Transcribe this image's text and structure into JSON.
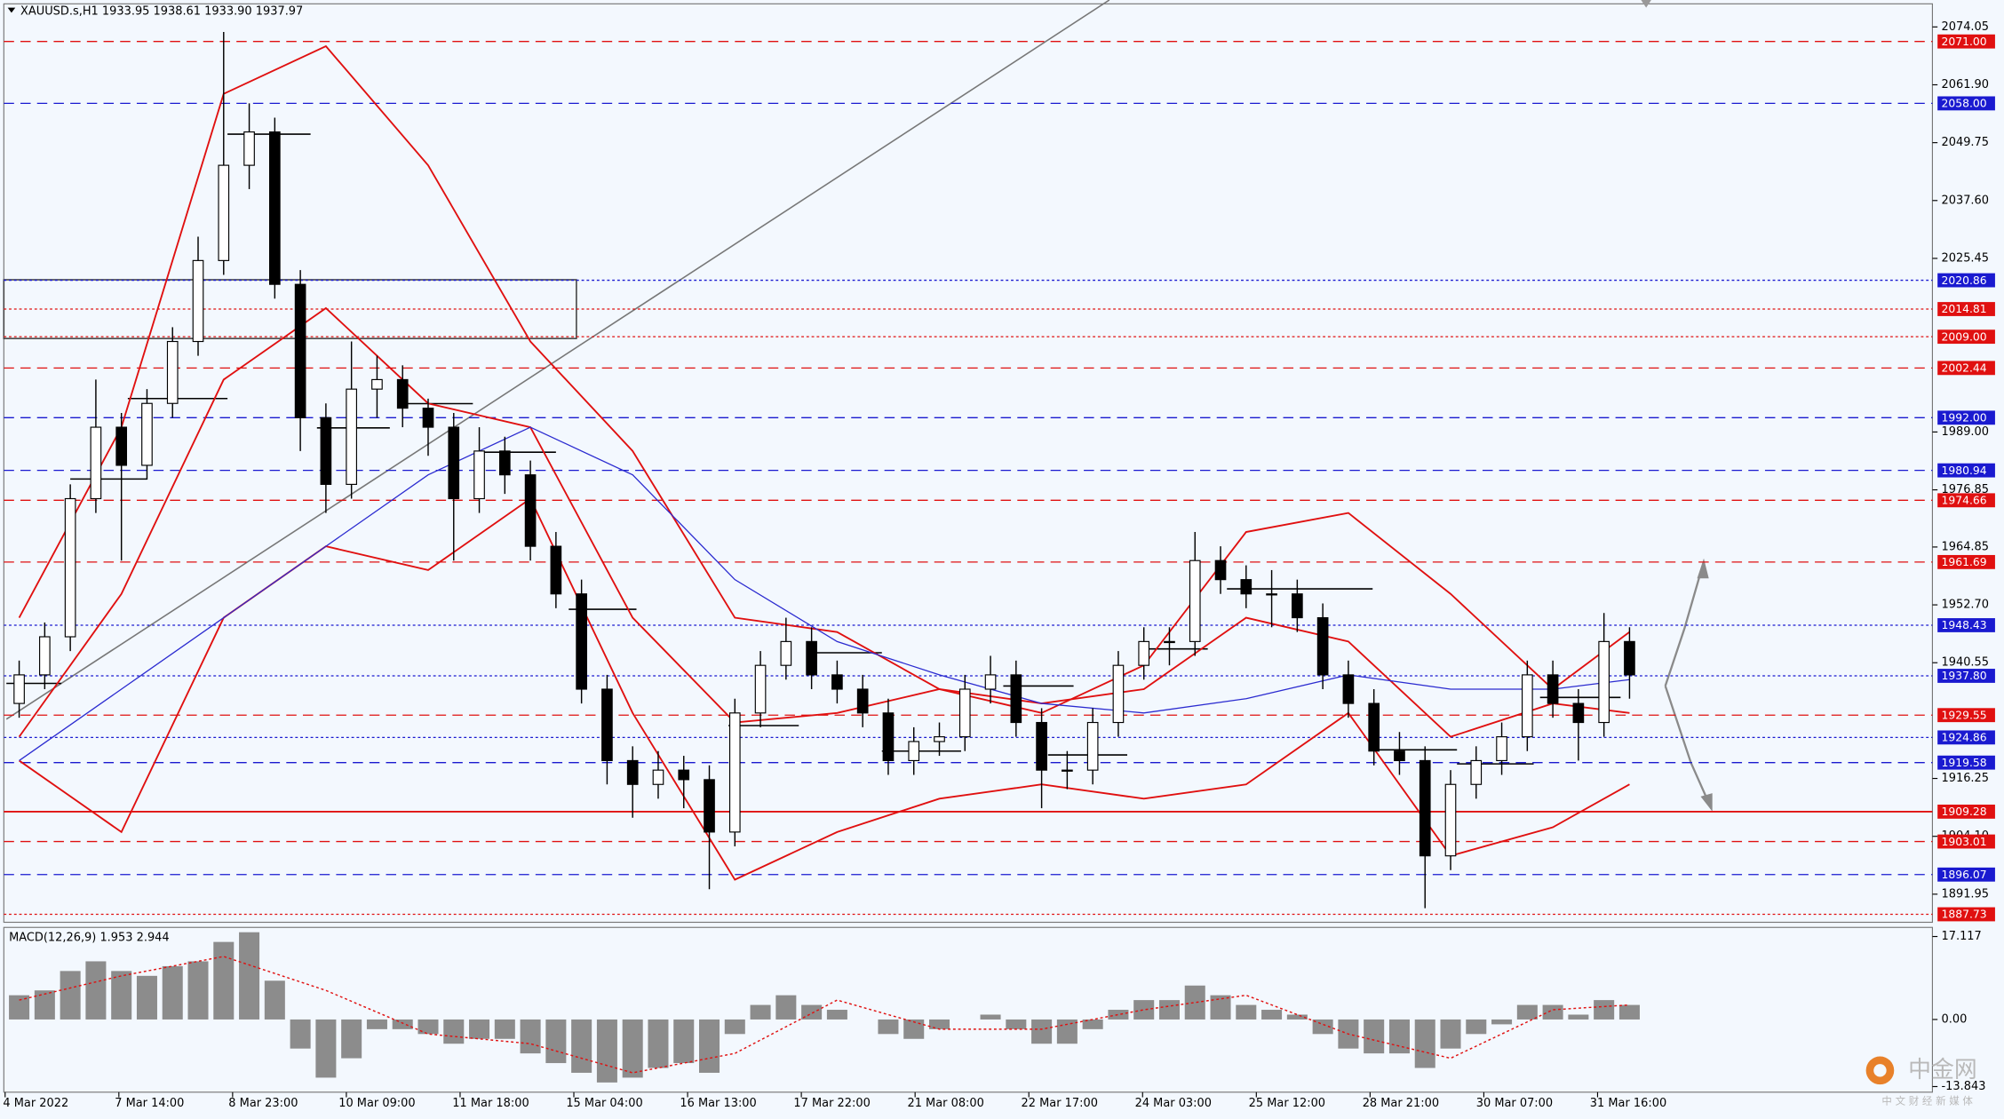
{
  "chart_data": {
    "type": "candlestick",
    "title": "XAUUSD.s,H1  1933.95 1938.61 1933.90 1937.97",
    "macd_title": "MACD(12,26,9) 1.953 2.944",
    "watermark": "中金网",
    "watermark_sub": "中 文 财 经 新 媒 体",
    "categories": [
      "4 Mar 2022",
      "7 Mar 14:00",
      "8 Mar 23:00",
      "10 Mar 09:00",
      "11 Mar 18:00",
      "15 Mar 04:00",
      "16 Mar 13:00",
      "17 Mar 22:00",
      "21 Mar 08:00",
      "22 Mar 17:00",
      "24 Mar 03:00",
      "25 Mar 12:00",
      "28 Mar 21:00",
      "30 Mar 07:00",
      "31 Mar 16:00"
    ],
    "open": [
      1932,
      1938,
      1946,
      1975,
      1990,
      1982,
      1995,
      2008,
      2025,
      2045,
      2052,
      2020,
      1992,
      1978,
      1998,
      2000,
      1994,
      1990,
      1975,
      1985,
      1980,
      1965,
      1955,
      1935,
      1920,
      1915,
      1918,
      1916,
      1905,
      1930,
      1940,
      1945,
      1938,
      1935,
      1930,
      1920,
      1924,
      1925,
      1935,
      1938,
      1928,
      1918,
      1918,
      1928,
      1940,
      1945,
      1945,
      1962,
      1958,
      1955,
      1955,
      1950,
      1938,
      1932,
      1922,
      1920,
      1900,
      1915,
      1920,
      1925,
      1938,
      1932,
      1928,
      1945
    ],
    "high": [
      1941,
      1949,
      1978,
      2000,
      1993,
      1998,
      2011,
      2030,
      2073,
      2058,
      2055,
      2023,
      1995,
      2008,
      2005,
      2003,
      1996,
      1993,
      1990,
      1988,
      1983,
      1968,
      1958,
      1938,
      1923,
      1922,
      1921,
      1919,
      1933,
      1943,
      1950,
      1948,
      1941,
      1938,
      1933,
      1927,
      1928,
      1938,
      1942,
      1941,
      1931,
      1922,
      1931,
      1943,
      1948,
      1948,
      1968,
      1965,
      1961,
      1960,
      1958,
      1953,
      1941,
      1935,
      1926,
      1923,
      1918,
      1923,
      1928,
      1941,
      1941,
      1935,
      1951,
      1948
    ],
    "low": [
      1929,
      1935,
      1943,
      1972,
      1962,
      1979,
      1992,
      2005,
      2022,
      2040,
      2017,
      1985,
      1972,
      1975,
      1992,
      1990,
      1984,
      1962,
      1972,
      1976,
      1962,
      1952,
      1932,
      1915,
      1908,
      1912,
      1910,
      1893,
      1902,
      1927,
      1937,
      1935,
      1932,
      1927,
      1917,
      1917,
      1921,
      1922,
      1932,
      1925,
      1910,
      1914,
      1915,
      1925,
      1937,
      1940,
      1942,
      1955,
      1952,
      1948,
      1947,
      1935,
      1929,
      1919,
      1917,
      1889,
      1897,
      1912,
      1917,
      1922,
      1929,
      1920,
      1925,
      1933
    ],
    "close": [
      1938,
      1946,
      1975,
      1990,
      1982,
      1995,
      2008,
      2025,
      2045,
      2052,
      2020,
      1992,
      1978,
      1998,
      2000,
      1994,
      1990,
      1975,
      1985,
      1980,
      1965,
      1955,
      1935,
      1920,
      1915,
      1918,
      1916,
      1905,
      1930,
      1940,
      1945,
      1938,
      1935,
      1930,
      1920,
      1924,
      1925,
      1935,
      1938,
      1928,
      1918,
      1918,
      1928,
      1940,
      1945,
      1945,
      1962,
      1958,
      1955,
      1955,
      1950,
      1938,
      1932,
      1922,
      1920,
      1900,
      1915,
      1920,
      1925,
      1938,
      1932,
      1928,
      1945,
      1938
    ],
    "overlays": {
      "x": [
        0,
        4,
        8,
        12,
        16,
        20,
        24,
        28,
        32,
        36,
        40,
        44,
        48,
        52,
        56,
        60,
        63
      ],
      "series": [
        {
          "color": "#e01010",
          "values": [
            1950,
            1990,
            2060,
            2070,
            2045,
            2008,
            1985,
            1950,
            1947,
            1935,
            1930,
            1940,
            1968,
            1972,
            1955,
            1935,
            1947
          ]
        },
        {
          "color": "#e01010",
          "values": [
            1925,
            1955,
            2000,
            2015,
            1995,
            1990,
            1950,
            1928,
            1930,
            1935,
            1932,
            1935,
            1950,
            1945,
            1925,
            1932,
            1930
          ]
        },
        {
          "color": "#e01010",
          "values": [
            1920,
            1905,
            1950,
            1965,
            1960,
            1975,
            1930,
            1895,
            1905,
            1912,
            1915,
            1912,
            1915,
            1930,
            1900,
            1906,
            1915
          ]
        },
        {
          "color": "#2b2bd0",
          "values": [
            1920,
            1935,
            1950,
            1965,
            1980,
            1990,
            1980,
            1958,
            1945,
            1938,
            1932,
            1930,
            1933,
            1938,
            1935,
            1935,
            1937
          ]
        }
      ]
    },
    "ylim": [
      1886.05,
      2078.9
    ],
    "yticks": [
      2074.05,
      {
        "value": 2061.9,
        "label": "2061.90"
      },
      2049.75,
      {
        "value": 2037.6,
        "label": "2037.60"
      },
      2025.45,
      {
        "value": 1989,
        "label": "1989.00"
      },
      1976.85,
      1964.85,
      {
        "value": 1952.7,
        "label": "1952.70"
      },
      1940.55,
      1916.25,
      {
        "value": 1904.1,
        "label": "1904.10"
      },
      1891.95
    ],
    "levels": [
      {
        "value": 2071,
        "label": "2071.00",
        "color": "#e01010",
        "dash": "dashed"
      },
      {
        "value": 2058,
        "label": "2058.00",
        "color": "#1a1ad0",
        "dash": "dashed"
      },
      {
        "value": 2020.86,
        "label": "2020.86",
        "color": "#1a1ad0",
        "dash": "dotted"
      },
      {
        "value": 2014.81,
        "label": "2014.81",
        "color": "#e01010",
        "dash": "dotted"
      },
      {
        "value": 2009,
        "label": "2009.00",
        "color": "#e01010",
        "dash": "dotted"
      },
      {
        "value": 2002.44,
        "label": "2002.44",
        "color": "#e01010",
        "dash": "dashed"
      },
      {
        "value": 1992,
        "label": "1992.00",
        "color": "#1a1ad0",
        "dash": "dashed"
      },
      {
        "value": 1980.94,
        "label": "1980.94",
        "color": "#1a1ad0",
        "dash": "dashed"
      },
      {
        "value": 1974.66,
        "label": "1974.66",
        "color": "#e01010",
        "dash": "dashed"
      },
      {
        "value": 1961.69,
        "label": "1961.69",
        "color": "#e01010",
        "dash": "dashed"
      },
      {
        "value": 1948.43,
        "label": "1948.43",
        "color": "#1a1ad0",
        "dash": "dotted"
      },
      {
        "value": 1937.8,
        "label": "1937.80",
        "color": "#1a1ad0",
        "dash": "dotted"
      },
      {
        "value": 1929.55,
        "label": "1929.55",
        "color": "#e01010",
        "dash": "dashed"
      },
      {
        "value": 1924.86,
        "label": "1924.86",
        "color": "#1a1ad0",
        "dash": "dotted"
      },
      {
        "value": 1919.58,
        "label": "1919.58",
        "color": "#1a1ad0",
        "dash": "dashed"
      },
      {
        "value": 1909.28,
        "label": "1909.28",
        "color": "#e01010",
        "dash": "solid"
      },
      {
        "value": 1903.01,
        "label": "1903.01",
        "color": "#e01010",
        "dash": "dashed"
      },
      {
        "value": 1896.07,
        "label": "1896.07",
        "color": "#1a1ad0",
        "dash": "dashed"
      },
      {
        "value": 1887.73,
        "label": "1887.73",
        "color": "#e01010",
        "dash": "dotted"
      }
    ],
    "macd": {
      "values": [
        5,
        6,
        10,
        12,
        10,
        9,
        11,
        12,
        16,
        18,
        8,
        -6,
        -12,
        -8,
        -2,
        -2,
        -3,
        -5,
        -4,
        -4,
        -7,
        -9,
        -11,
        -13,
        -12,
        -10,
        -9,
        -11,
        -3,
        3,
        5,
        3,
        2,
        0,
        -3,
        -4,
        -2,
        0,
        1,
        -2,
        -5,
        -5,
        -2,
        2,
        4,
        4,
        7,
        5,
        3,
        2,
        1,
        -3,
        -6,
        -7,
        -7,
        -10,
        -6,
        -3,
        -1,
        3,
        3,
        1,
        4,
        3
      ],
      "color": "#8c8c8c",
      "signal_color": "#e01010",
      "signal": [
        4,
        9,
        13,
        6,
        -3,
        -5,
        -11,
        -7,
        4,
        -2,
        -2,
        2,
        5,
        -3,
        -8,
        2,
        3
      ],
      "ylim": [
        -15,
        19
      ],
      "yticks": [
        17.117,
        {
          "value": 0,
          "label": "0.00"
        },
        -13.843
      ]
    }
  }
}
